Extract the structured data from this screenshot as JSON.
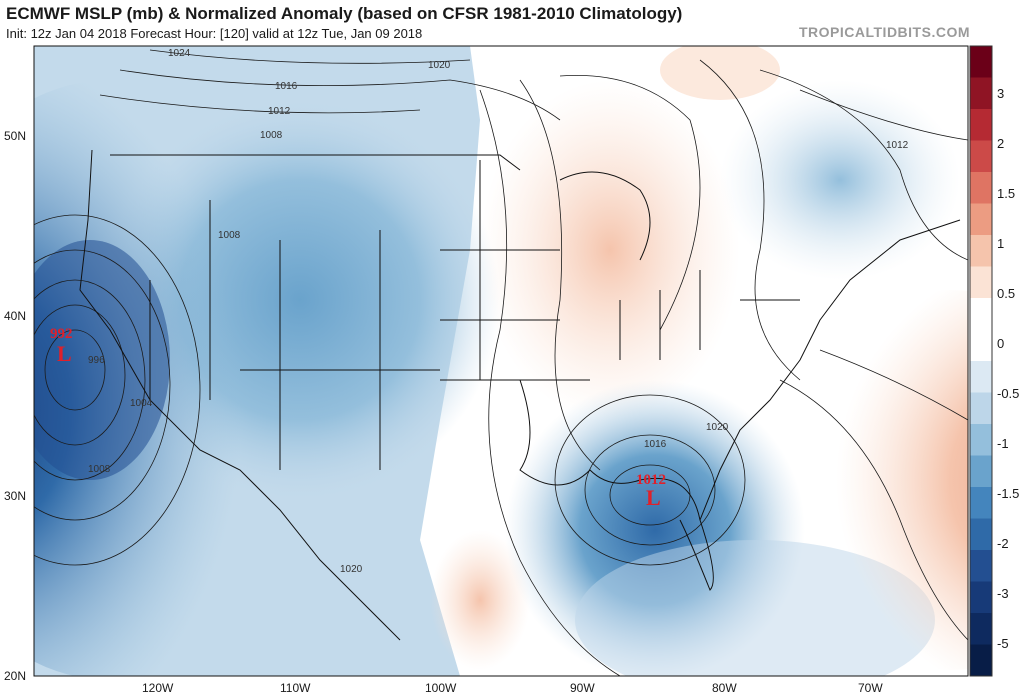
{
  "header": {
    "title": "ECMWF MSLP (mb) & Normalized Anomaly (based on CFSR 1981-2010 Climatology)",
    "subtitle": "Init: 12z Jan 04 2018   Forecast Hour: [120]   valid at 12z Tue, Jan 09 2018",
    "brand": "TROPICALTIDBITS.COM"
  },
  "map": {
    "lat_labels": [
      "50N",
      "40N",
      "30N",
      "20N"
    ],
    "lon_labels": [
      "120W",
      "110W",
      "100W",
      "90W",
      "80W",
      "70W"
    ],
    "isobar_labels": [
      "1024",
      "1020",
      "1016",
      "1012",
      "1008",
      "1008",
      "996",
      "1004",
      "1008",
      "1016",
      "1020",
      "1012",
      "1020"
    ],
    "pressure_centers": [
      {
        "value": "992",
        "symbol": "L",
        "color": "#e0202a"
      },
      {
        "value": "1012",
        "symbol": "L",
        "color": "#e0202a"
      }
    ]
  },
  "colorbar": {
    "labels": [
      "3",
      "2",
      "1.5",
      "1",
      "0.5",
      "0",
      "-0.5",
      "-1",
      "-1.5",
      "-2",
      "-3",
      "-5"
    ],
    "colors": [
      "#6b0018",
      "#8f1424",
      "#b52a33",
      "#cc4a48",
      "#df7463",
      "#ec9c82",
      "#f5c4ac",
      "#fbe3d5",
      "#ffffff",
      "#ffffff",
      "#dce9f3",
      "#bdd6e9",
      "#94bfdc",
      "#6aa3cc",
      "#4485bd",
      "#2f6aa8",
      "#234f91",
      "#173a78",
      "#0e2a5f",
      "#081d47"
    ]
  }
}
